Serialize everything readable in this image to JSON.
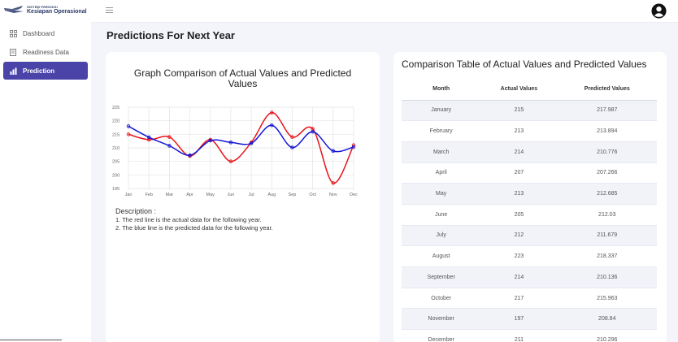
{
  "sidebar": {
    "logo_small": "SISTEM PREDIKSI",
    "logo_big": "Kesiapan Operasional",
    "items": [
      {
        "label": "Dashboard",
        "icon": "grid-icon",
        "active": false
      },
      {
        "label": "Readiness Data",
        "icon": "document-icon",
        "active": false
      },
      {
        "label": "Prediction",
        "icon": "bar-chart-icon",
        "active": true
      }
    ]
  },
  "header": {
    "menu_icon": "hamburger-icon",
    "user_icon": "user-avatar-icon"
  },
  "page": {
    "title": "Predictions For Next Year"
  },
  "graph_card": {
    "title": "Graph Comparison of Actual Values and Predicted Values",
    "description_title": "Description :",
    "description_lines": [
      "1. The red line is the actual data for the following year.",
      "2. The blue line is the predicted data for the following year."
    ]
  },
  "chart_data": {
    "type": "line",
    "title": "",
    "xlabel": "",
    "ylabel": "",
    "categories": [
      "Jan",
      "Feb",
      "Mar",
      "Apr",
      "May",
      "Jun",
      "Jul",
      "Aug",
      "Sep",
      "Oct",
      "Nov",
      "Dec"
    ],
    "ylim": [
      195,
      225
    ],
    "yticks": [
      195,
      200,
      205,
      210,
      215,
      220,
      225
    ],
    "grid": true,
    "legend": "none",
    "series": [
      {
        "color": "#e8141b",
        "values": [
          215,
          213,
          214,
          207,
          213,
          205,
          212,
          223,
          214,
          217,
          197,
          211
        ]
      },
      {
        "color": "#1515d6",
        "values": [
          217.987,
          213.894,
          210.776,
          207.266,
          212.685,
          212.03,
          211.679,
          218.337,
          210.136,
          215.963,
          208.84,
          210.296
        ]
      }
    ]
  },
  "table": {
    "title": "Comparison Table of Actual Values and Predicted Values",
    "headers": [
      "Month",
      "Actual Values",
      "Predicted Values"
    ],
    "rows": [
      [
        "January",
        "215",
        "217.987"
      ],
      [
        "February",
        "213",
        "213.894"
      ],
      [
        "March",
        "214",
        "210.776"
      ],
      [
        "April",
        "207",
        "207.266"
      ],
      [
        "May",
        "213",
        "212.685"
      ],
      [
        "June",
        "205",
        "212.03"
      ],
      [
        "July",
        "212",
        "211.679"
      ],
      [
        "August",
        "223",
        "218.337"
      ],
      [
        "September",
        "214",
        "210.136"
      ],
      [
        "October",
        "217",
        "215.963"
      ],
      [
        "November",
        "197",
        "208.84"
      ],
      [
        "December",
        "211",
        "210.296"
      ]
    ]
  }
}
